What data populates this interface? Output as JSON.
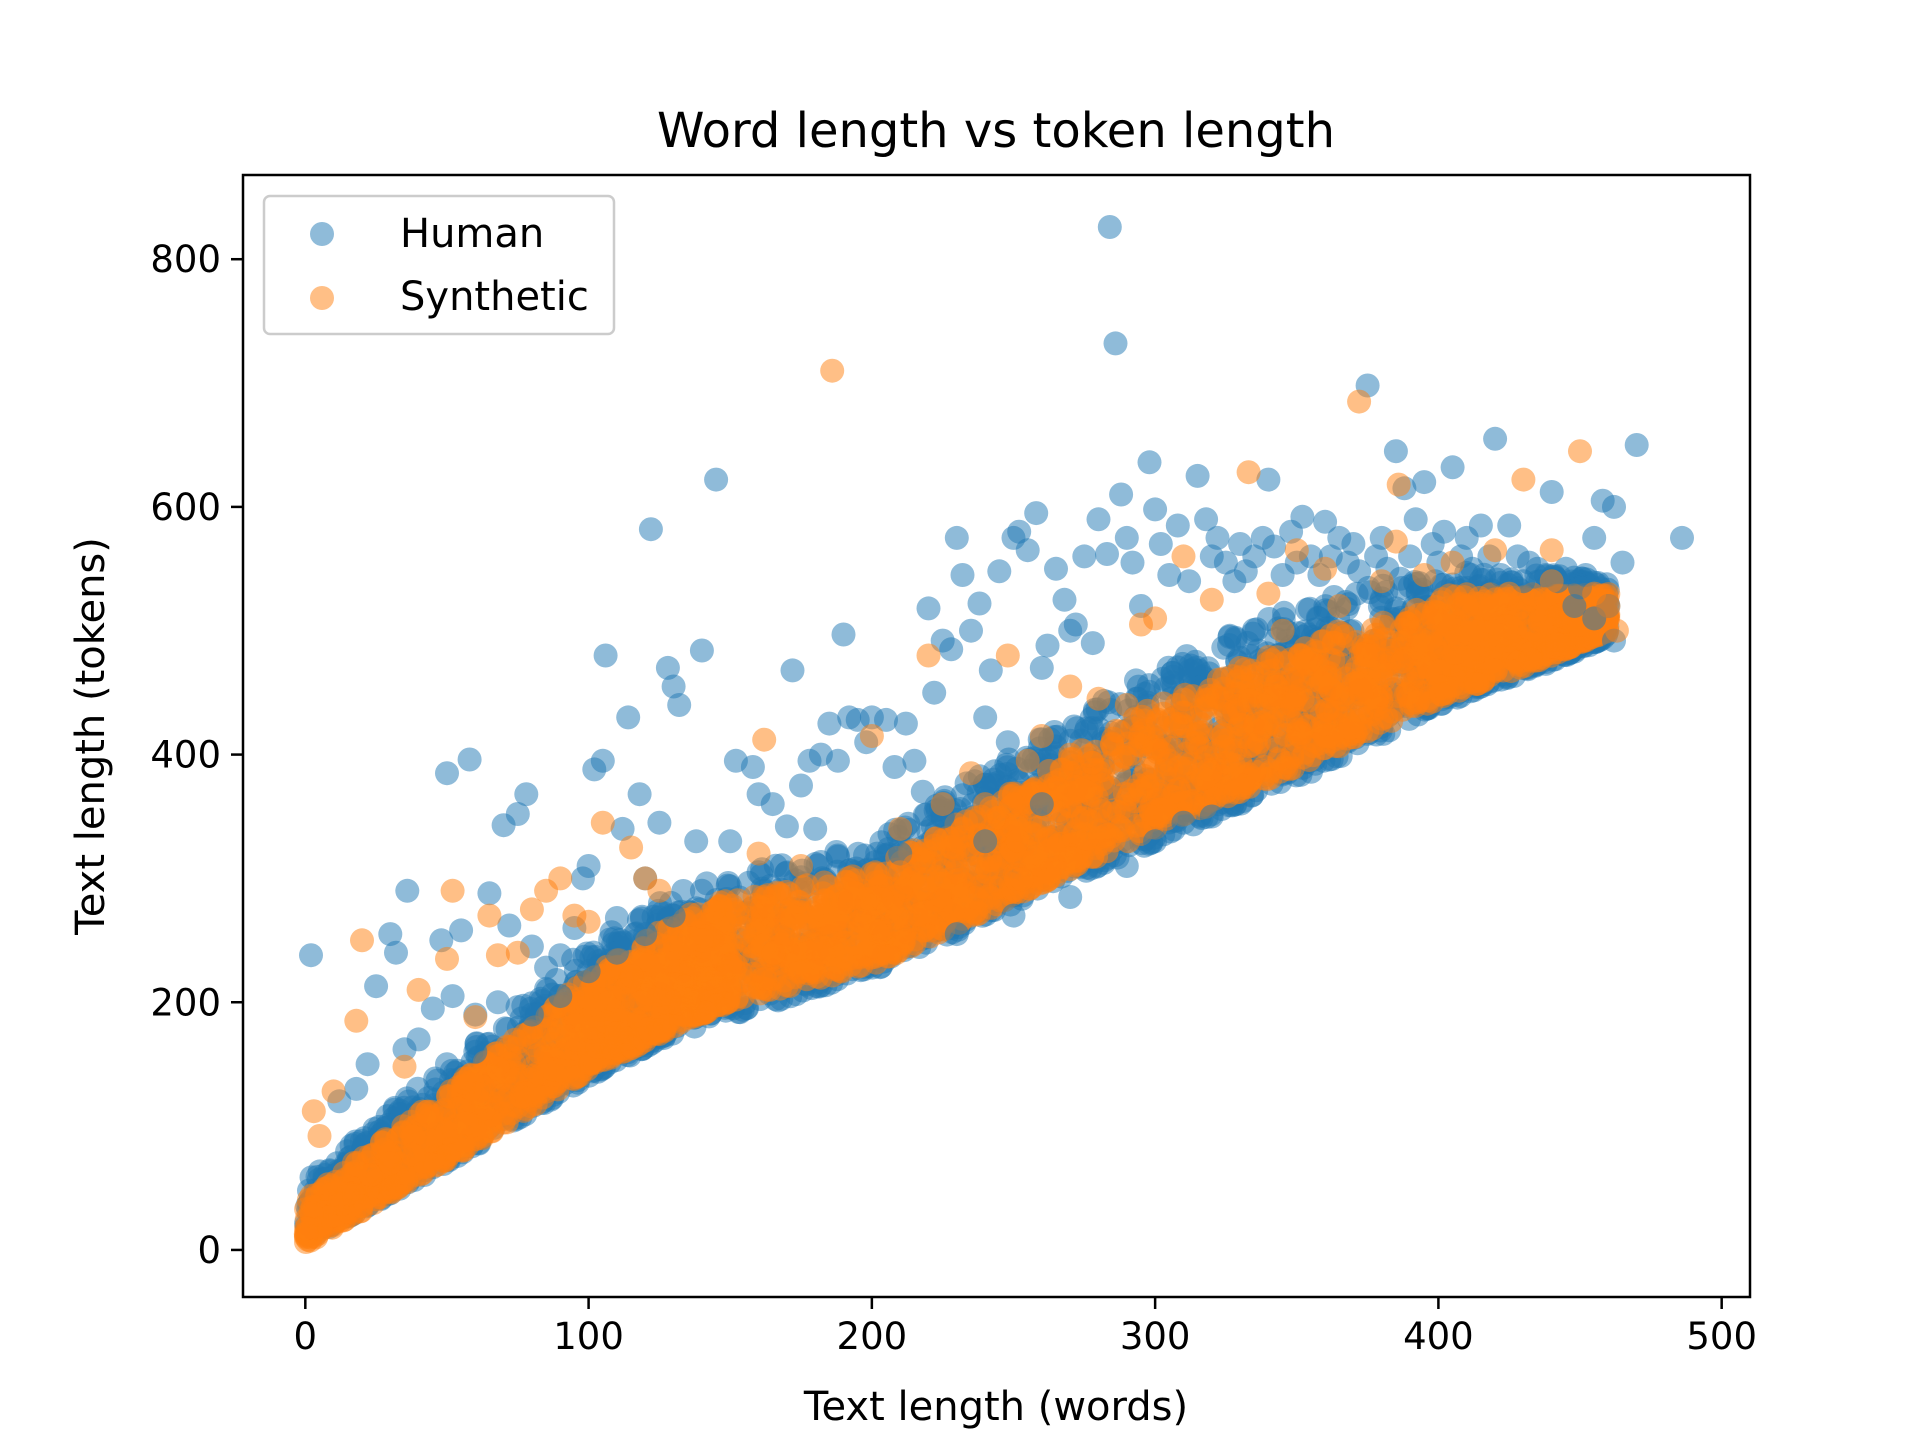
{
  "chart_data": {
    "type": "scatter",
    "title": "Word length vs token length",
    "xlabel": "Text length (words)",
    "ylabel": "Text length (tokens)",
    "xlim": [
      -22,
      510
    ],
    "ylim": [
      -38,
      868
    ],
    "x_ticks": [
      0,
      100,
      200,
      300,
      400,
      500
    ],
    "y_ticks": [
      0,
      200,
      400,
      600,
      800
    ],
    "grid": false,
    "legend_position": "top-left",
    "series": [
      {
        "name": "Human",
        "color": "#1f77b4",
        "opacity": 0.5,
        "points": [
          [
            2,
            238
          ],
          [
            12,
            120
          ],
          [
            18,
            130
          ],
          [
            22,
            150
          ],
          [
            25,
            213
          ],
          [
            30,
            255
          ],
          [
            32,
            240
          ],
          [
            35,
            162
          ],
          [
            36,
            290
          ],
          [
            40,
            170
          ],
          [
            45,
            195
          ],
          [
            48,
            250
          ],
          [
            50,
            385
          ],
          [
            52,
            205
          ],
          [
            55,
            258
          ],
          [
            58,
            396
          ],
          [
            60,
            190
          ],
          [
            65,
            288
          ],
          [
            68,
            200
          ],
          [
            70,
            343
          ],
          [
            72,
            262
          ],
          [
            75,
            352
          ],
          [
            78,
            368
          ],
          [
            80,
            245
          ],
          [
            85,
            228
          ],
          [
            90,
            238
          ],
          [
            95,
            260
          ],
          [
            98,
            300
          ],
          [
            100,
            310
          ],
          [
            102,
            388
          ],
          [
            105,
            395
          ],
          [
            106,
            480
          ],
          [
            110,
            268
          ],
          [
            112,
            340
          ],
          [
            114,
            430
          ],
          [
            118,
            368
          ],
          [
            120,
            300
          ],
          [
            122,
            582
          ],
          [
            125,
            345
          ],
          [
            128,
            470
          ],
          [
            130,
            455
          ],
          [
            132,
            440
          ],
          [
            138,
            330
          ],
          [
            140,
            484
          ],
          [
            145,
            622
          ],
          [
            150,
            330
          ],
          [
            152,
            395
          ],
          [
            158,
            390
          ],
          [
            160,
            368
          ],
          [
            165,
            360
          ],
          [
            170,
            342
          ],
          [
            172,
            468
          ],
          [
            175,
            375
          ],
          [
            178,
            395
          ],
          [
            182,
            400
          ],
          [
            185,
            425
          ],
          [
            188,
            395
          ],
          [
            190,
            497
          ],
          [
            192,
            430
          ],
          [
            195,
            428
          ],
          [
            198,
            410
          ],
          [
            200,
            430
          ],
          [
            205,
            428
          ],
          [
            208,
            390
          ],
          [
            212,
            425
          ],
          [
            215,
            395
          ],
          [
            218,
            370
          ],
          [
            220,
            518
          ],
          [
            222,
            450
          ],
          [
            225,
            492
          ],
          [
            228,
            485
          ],
          [
            230,
            575
          ],
          [
            232,
            545
          ],
          [
            235,
            500
          ],
          [
            238,
            522
          ],
          [
            240,
            430
          ],
          [
            242,
            468
          ],
          [
            245,
            548
          ],
          [
            248,
            410
          ],
          [
            250,
            575
          ],
          [
            252,
            580
          ],
          [
            255,
            565
          ],
          [
            258,
            595
          ],
          [
            260,
            470
          ],
          [
            262,
            488
          ],
          [
            265,
            550
          ],
          [
            268,
            525
          ],
          [
            270,
            500
          ],
          [
            272,
            505
          ],
          [
            275,
            560
          ],
          [
            278,
            490
          ],
          [
            280,
            590
          ],
          [
            283,
            562
          ],
          [
            284,
            826
          ],
          [
            286,
            732
          ],
          [
            288,
            610
          ],
          [
            290,
            575
          ],
          [
            292,
            555
          ],
          [
            295,
            520
          ],
          [
            298,
            636
          ],
          [
            300,
            598
          ],
          [
            302,
            570
          ],
          [
            305,
            545
          ],
          [
            308,
            585
          ],
          [
            312,
            540
          ],
          [
            315,
            625
          ],
          [
            318,
            590
          ],
          [
            320,
            560
          ],
          [
            322,
            575
          ],
          [
            325,
            555
          ],
          [
            328,
            540
          ],
          [
            330,
            570
          ],
          [
            332,
            548
          ],
          [
            335,
            560
          ],
          [
            338,
            575
          ],
          [
            340,
            622
          ],
          [
            342,
            568
          ],
          [
            345,
            545
          ],
          [
            348,
            580
          ],
          [
            350,
            555
          ],
          [
            352,
            592
          ],
          [
            355,
            560
          ],
          [
            358,
            545
          ],
          [
            360,
            588
          ],
          [
            362,
            560
          ],
          [
            365,
            575
          ],
          [
            368,
            555
          ],
          [
            370,
            570
          ],
          [
            372,
            548
          ],
          [
            375,
            698
          ],
          [
            378,
            560
          ],
          [
            380,
            575
          ],
          [
            382,
            550
          ],
          [
            385,
            645
          ],
          [
            388,
            615
          ],
          [
            390,
            560
          ],
          [
            392,
            590
          ],
          [
            395,
            620
          ],
          [
            398,
            570
          ],
          [
            400,
            555
          ],
          [
            402,
            580
          ],
          [
            405,
            632
          ],
          [
            408,
            560
          ],
          [
            410,
            575
          ],
          [
            412,
            550
          ],
          [
            415,
            585
          ],
          [
            418,
            560
          ],
          [
            420,
            655
          ],
          [
            422,
            545
          ],
          [
            425,
            585
          ],
          [
            428,
            560
          ],
          [
            430,
            540
          ],
          [
            432,
            555
          ],
          [
            435,
            550
          ],
          [
            438,
            545
          ],
          [
            440,
            612
          ],
          [
            442,
            540
          ],
          [
            445,
            550
          ],
          [
            448,
            520
          ],
          [
            450,
            535
          ],
          [
            452,
            545
          ],
          [
            455,
            575
          ],
          [
            458,
            605
          ],
          [
            460,
            520
          ],
          [
            462,
            600
          ],
          [
            465,
            555
          ],
          [
            470,
            650
          ],
          [
            486,
            575
          ],
          [
            462,
            492
          ],
          [
            455,
            510
          ],
          [
            300,
            330
          ],
          [
            310,
            345
          ],
          [
            320,
            350
          ],
          [
            290,
            310
          ],
          [
            270,
            285
          ],
          [
            250,
            270
          ],
          [
            230,
            255
          ],
          [
            260,
            360
          ],
          [
            240,
            330
          ],
          [
            225,
            350
          ],
          [
            210,
            320
          ],
          [
            180,
            340
          ],
          [
            160,
            305
          ],
          [
            140,
            290
          ],
          [
            130,
            270
          ],
          [
            120,
            255
          ],
          [
            110,
            240
          ],
          [
            100,
            225
          ],
          [
            90,
            205
          ],
          [
            80,
            190
          ],
          [
            60,
            160
          ],
          [
            50,
            150
          ]
        ]
      },
      {
        "name": "Synthetic",
        "color": "#ff7f0e",
        "opacity": 0.5,
        "points": [
          [
            3,
            112
          ],
          [
            5,
            92
          ],
          [
            10,
            128
          ],
          [
            18,
            185
          ],
          [
            20,
            250
          ],
          [
            35,
            148
          ],
          [
            40,
            210
          ],
          [
            50,
            235
          ],
          [
            52,
            290
          ],
          [
            60,
            188
          ],
          [
            65,
            270
          ],
          [
            68,
            238
          ],
          [
            75,
            240
          ],
          [
            80,
            275
          ],
          [
            85,
            290
          ],
          [
            90,
            300
          ],
          [
            95,
            270
          ],
          [
            100,
            265
          ],
          [
            105,
            345
          ],
          [
            115,
            325
          ],
          [
            120,
            300
          ],
          [
            125,
            290
          ],
          [
            160,
            320
          ],
          [
            162,
            412
          ],
          [
            175,
            310
          ],
          [
            186,
            710
          ],
          [
            200,
            415
          ],
          [
            210,
            340
          ],
          [
            215,
            310
          ],
          [
            220,
            480
          ],
          [
            225,
            360
          ],
          [
            230,
            305
          ],
          [
            235,
            385
          ],
          [
            240,
            360
          ],
          [
            248,
            480
          ],
          [
            255,
            395
          ],
          [
            260,
            415
          ],
          [
            270,
            455
          ],
          [
            280,
            445
          ],
          [
            295,
            505
          ],
          [
            300,
            510
          ],
          [
            310,
            560
          ],
          [
            320,
            525
          ],
          [
            333,
            628
          ],
          [
            340,
            530
          ],
          [
            350,
            565
          ],
          [
            360,
            550
          ],
          [
            372,
            685
          ],
          [
            380,
            540
          ],
          [
            385,
            572
          ],
          [
            386,
            618
          ],
          [
            395,
            545
          ],
          [
            405,
            555
          ],
          [
            420,
            565
          ],
          [
            430,
            622
          ],
          [
            440,
            565
          ],
          [
            450,
            645
          ],
          [
            460,
            520
          ],
          [
            463,
            500
          ],
          [
            330,
            470
          ],
          [
            345,
            500
          ],
          [
            365,
            520
          ],
          [
            375,
            480
          ],
          [
            390,
            510
          ],
          [
            410,
            520
          ],
          [
            425,
            530
          ],
          [
            440,
            540
          ],
          [
            455,
            530
          ],
          [
            290,
            440
          ],
          [
            270,
            400
          ],
          [
            250,
            360
          ],
          [
            230,
            330
          ],
          [
            210,
            305
          ],
          [
            190,
            280
          ],
          [
            170,
            255
          ],
          [
            150,
            230
          ],
          [
            140,
            250
          ],
          [
            130,
            200
          ],
          [
            110,
            175
          ],
          [
            90,
            145
          ],
          [
            70,
            120
          ],
          [
            50,
            95
          ],
          [
            30,
            70
          ],
          [
            15,
            45
          ]
        ]
      }
    ],
    "bulk_regions": [
      {
        "series": "Human",
        "band": [
          [
            0,
            8,
            55
          ],
          [
            50,
            70,
            150
          ],
          [
            100,
            140,
            245
          ],
          [
            130,
            175,
            290
          ],
          [
            200,
            225,
            330
          ],
          [
            250,
            280,
            400
          ],
          [
            300,
            330,
            470
          ],
          [
            350,
            380,
            520
          ],
          [
            400,
            440,
            550
          ],
          [
            440,
            475,
            545
          ],
          [
            460,
            495,
            540
          ]
        ]
      },
      {
        "series": "Synthetic",
        "band": [
          [
            0,
            5,
            40
          ],
          [
            50,
            72,
            128
          ],
          [
            100,
            145,
            220
          ],
          [
            130,
            180,
            265
          ],
          [
            150,
            200,
            285
          ],
          [
            200,
            230,
            305
          ],
          [
            250,
            285,
            370
          ],
          [
            300,
            340,
            440
          ],
          [
            350,
            390,
            490
          ],
          [
            400,
            445,
            530
          ],
          [
            440,
            480,
            530
          ],
          [
            460,
            500,
            530
          ]
        ]
      }
    ]
  }
}
